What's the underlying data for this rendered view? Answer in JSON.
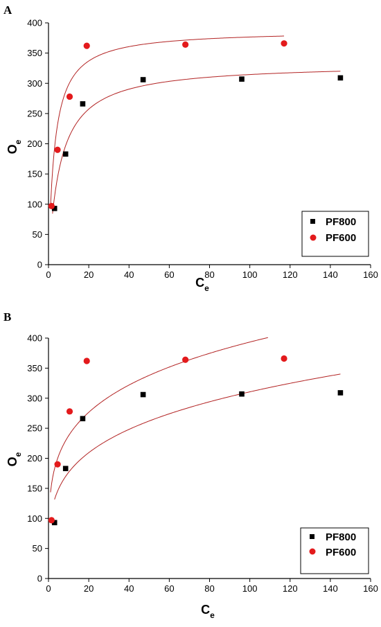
{
  "chart_data": [
    {
      "panel": "A",
      "type": "scatter",
      "xlabel": "C",
      "xlabel_sub": "e",
      "ylabel": "O",
      "ylabel_sub": "e",
      "xlim": [
        0,
        160
      ],
      "ylim": [
        0,
        400
      ],
      "xticks": [
        0,
        20,
        40,
        60,
        80,
        100,
        120,
        140,
        160
      ],
      "yticks": [
        0,
        50,
        100,
        150,
        200,
        250,
        300,
        350,
        400
      ],
      "grid": false,
      "legend_position": "bottom-right",
      "series": [
        {
          "name": "PF800",
          "marker": "square",
          "color": "#000000",
          "x": [
            3,
            8.5,
            17,
            47,
            96,
            145
          ],
          "y": [
            93,
            183,
            266,
            306,
            307,
            309
          ]
        },
        {
          "name": "PF600",
          "marker": "circle",
          "color": "#e31a1c",
          "x": [
            1.5,
            4.5,
            10.5,
            19,
            68,
            117
          ],
          "y": [
            97,
            190,
            278,
            362,
            364,
            366
          ]
        }
      ],
      "fits": [
        {
          "series": "PF800",
          "model": "langmuir",
          "qmax": 333,
          "K": 0.17,
          "xrange": [
            2,
            145
          ],
          "color": "#b22222"
        },
        {
          "series": "PF600",
          "model": "langmuir",
          "qmax": 388,
          "K": 0.33,
          "xrange": [
            1,
            117
          ],
          "color": "#b22222"
        }
      ]
    },
    {
      "panel": "B",
      "type": "scatter",
      "xlabel": "C",
      "xlabel_sub": "e",
      "ylabel": "O",
      "ylabel_sub": "e",
      "xlim": [
        0,
        160
      ],
      "ylim": [
        0,
        400
      ],
      "xticks": [
        0,
        20,
        40,
        60,
        80,
        100,
        120,
        140,
        160
      ],
      "yticks": [
        0,
        50,
        100,
        150,
        200,
        250,
        300,
        350,
        400
      ],
      "grid": false,
      "legend_position": "bottom-right",
      "series": [
        {
          "name": "PF800",
          "marker": "square",
          "color": "#000000",
          "x": [
            3,
            8.5,
            17,
            47,
            96,
            145
          ],
          "y": [
            93,
            183,
            266,
            306,
            307,
            309
          ]
        },
        {
          "name": "PF600",
          "marker": "circle",
          "color": "#e31a1c",
          "x": [
            1.5,
            4.5,
            10.5,
            19,
            68,
            117
          ],
          "y": [
            97,
            190,
            278,
            362,
            364,
            366
          ]
        }
      ],
      "fits": [
        {
          "series": "PF800",
          "model": "freundlich",
          "KF": 100.5,
          "n": 0.245,
          "xrange": [
            3,
            145
          ],
          "color": "#b22222"
        },
        {
          "series": "PF600",
          "model": "freundlich",
          "KF": 143.5,
          "n": 0.219,
          "xrange": [
            1,
            109
          ],
          "color": "#b22222"
        }
      ]
    }
  ]
}
